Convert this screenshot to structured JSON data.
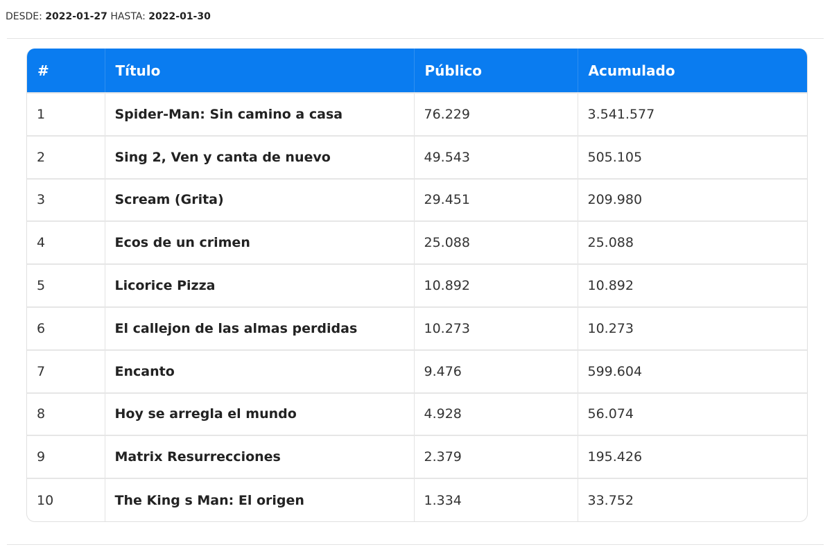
{
  "filter": {
    "from_label": "DESDE:",
    "from_date": "2022-01-27",
    "to_label": "HASTA:",
    "to_date": "2022-01-30"
  },
  "table": {
    "headers": [
      "#",
      "Título",
      "Público",
      "Acumulado"
    ],
    "rows": [
      {
        "rank": "1",
        "title": "Spider-Man: Sin camino a casa",
        "public": "76.229",
        "accumulated": "3.541.577"
      },
      {
        "rank": "2",
        "title": "Sing 2, Ven y canta de nuevo",
        "public": "49.543",
        "accumulated": "505.105"
      },
      {
        "rank": "3",
        "title": "Scream (Grita)",
        "public": "29.451",
        "accumulated": "209.980"
      },
      {
        "rank": "4",
        "title": "Ecos de un crimen",
        "public": "25.088",
        "accumulated": "25.088"
      },
      {
        "rank": "5",
        "title": "Licorice Pizza",
        "public": "10.892",
        "accumulated": "10.892"
      },
      {
        "rank": "6",
        "title": "El callejon de las almas perdidas",
        "public": "10.273",
        "accumulated": "10.273"
      },
      {
        "rank": "7",
        "title": "Encanto",
        "public": "9.476",
        "accumulated": "599.604"
      },
      {
        "rank": "8",
        "title": "Hoy se arregla el mundo",
        "public": "4.928",
        "accumulated": "56.074"
      },
      {
        "rank": "9",
        "title": "Matrix Resurrecciones",
        "public": "2.379",
        "accumulated": "195.426"
      },
      {
        "rank": "10",
        "title": "The King s Man: El origen",
        "public": "1.334",
        "accumulated": "33.752"
      }
    ]
  },
  "colors": {
    "header_bg": "#0a7cf0",
    "header_text": "#ffffff"
  }
}
